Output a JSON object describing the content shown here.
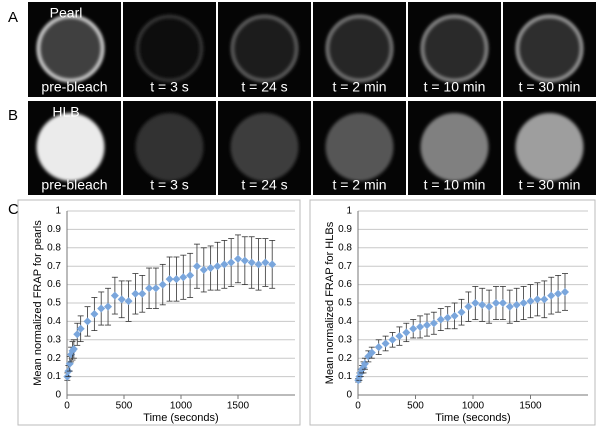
{
  "panels": [
    {
      "label": "A",
      "images": [
        {
          "title": "Pearl",
          "caption": "pre-bleach"
        },
        {
          "caption": "t = 3 s"
        },
        {
          "caption": "t = 24 s"
        },
        {
          "caption": "t = 2 min"
        },
        {
          "caption": "t = 10 min"
        },
        {
          "caption": "t = 30 min"
        }
      ]
    },
    {
      "label": "B",
      "images": [
        {
          "title": "HLB",
          "caption": "pre-bleach"
        },
        {
          "caption": "t = 3 s"
        },
        {
          "caption": "t = 24 s"
        },
        {
          "caption": "t = 2 min"
        },
        {
          "caption": "t = 10 min"
        },
        {
          "caption": "t = 30 min"
        }
      ]
    },
    {
      "label": "C"
    }
  ],
  "chart_data": [
    {
      "type": "scatter",
      "y_label": "Mean normalized FRAP for pearls",
      "x_label": "Time (seconds)",
      "xlim": [
        0,
        2000
      ],
      "xticks": [
        0,
        500,
        1000,
        1500
      ],
      "ylim": [
        0,
        1
      ],
      "yticks": [
        0,
        0.1,
        0.2,
        0.3,
        0.4,
        0.5,
        0.6,
        0.7,
        0.8,
        0.9,
        1
      ],
      "grid": true,
      "series": [
        {
          "color": "#7aa6dc",
          "x": [
            3,
            12,
            24,
            36,
            48,
            60,
            90,
            120,
            180,
            240,
            300,
            360,
            420,
            480,
            540,
            600,
            660,
            720,
            780,
            840,
            900,
            960,
            1020,
            1080,
            1140,
            1200,
            1260,
            1320,
            1380,
            1440,
            1500,
            1560,
            1620,
            1680,
            1740,
            1800
          ],
          "values": [
            0.1,
            0.13,
            0.17,
            0.22,
            0.24,
            0.25,
            0.33,
            0.36,
            0.4,
            0.44,
            0.47,
            0.48,
            0.54,
            0.52,
            0.51,
            0.55,
            0.55,
            0.58,
            0.58,
            0.6,
            0.63,
            0.63,
            0.64,
            0.65,
            0.7,
            0.68,
            0.69,
            0.7,
            0.71,
            0.72,
            0.74,
            0.73,
            0.72,
            0.71,
            0.72,
            0.71
          ],
          "errors": [
            0.02,
            0.03,
            0.04,
            0.04,
            0.05,
            0.05,
            0.06,
            0.07,
            0.08,
            0.09,
            0.09,
            0.1,
            0.1,
            0.1,
            0.11,
            0.11,
            0.1,
            0.11,
            0.11,
            0.11,
            0.12,
            0.12,
            0.12,
            0.12,
            0.12,
            0.12,
            0.12,
            0.13,
            0.13,
            0.13,
            0.13,
            0.13,
            0.14,
            0.14,
            0.13,
            0.13
          ]
        }
      ]
    },
    {
      "type": "scatter",
      "y_label": "Mean normalized FRAP for HLBs",
      "x_label": "Time (seconds)",
      "xlim": [
        0,
        2000
      ],
      "xticks": [
        0,
        500,
        1000,
        1500
      ],
      "ylim": [
        0,
        1
      ],
      "yticks": [
        0,
        0.1,
        0.2,
        0.3,
        0.4,
        0.5,
        0.6,
        0.7,
        0.8,
        0.9,
        1
      ],
      "grid": true,
      "series": [
        {
          "color": "#7aa6dc",
          "x": [
            3,
            12,
            24,
            36,
            48,
            60,
            90,
            120,
            180,
            240,
            300,
            360,
            420,
            480,
            540,
            600,
            660,
            720,
            780,
            840,
            900,
            960,
            1020,
            1080,
            1140,
            1200,
            1260,
            1320,
            1380,
            1440,
            1500,
            1560,
            1620,
            1680,
            1740,
            1800
          ],
          "values": [
            0.08,
            0.1,
            0.12,
            0.14,
            0.15,
            0.17,
            0.21,
            0.23,
            0.26,
            0.28,
            0.3,
            0.32,
            0.34,
            0.36,
            0.37,
            0.38,
            0.39,
            0.41,
            0.42,
            0.43,
            0.45,
            0.48,
            0.5,
            0.49,
            0.48,
            0.5,
            0.5,
            0.48,
            0.49,
            0.5,
            0.51,
            0.52,
            0.52,
            0.54,
            0.55,
            0.56
          ],
          "errors": [
            0.01,
            0.02,
            0.02,
            0.02,
            0.03,
            0.03,
            0.03,
            0.03,
            0.04,
            0.04,
            0.04,
            0.05,
            0.05,
            0.05,
            0.06,
            0.06,
            0.06,
            0.06,
            0.06,
            0.07,
            0.07,
            0.08,
            0.09,
            0.09,
            0.09,
            0.09,
            0.09,
            0.09,
            0.09,
            0.09,
            0.09,
            0.09,
            0.1,
            0.1,
            0.1,
            0.1
          ]
        }
      ]
    }
  ]
}
